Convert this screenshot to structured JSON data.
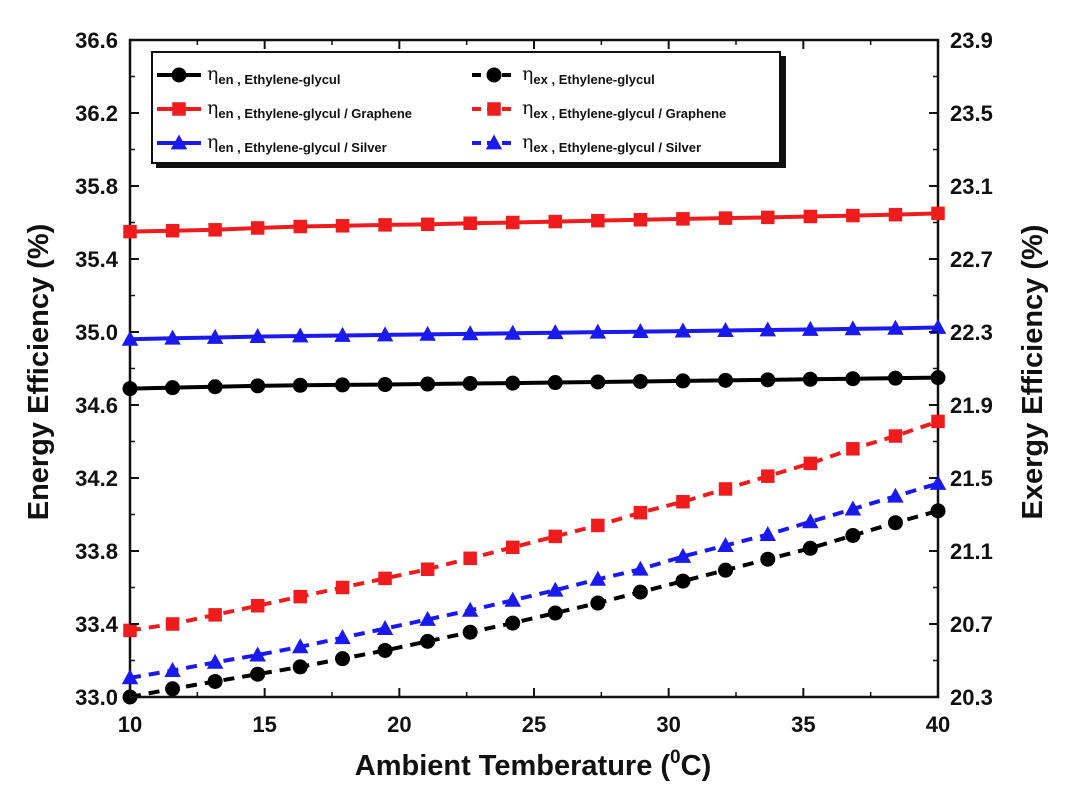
{
  "chart_data": {
    "type": "line",
    "xlabel": "Ambient Temberature (",
    "xlabel_sup": "0",
    "xlabel_unit": "C)",
    "ylabel": "Energy Efficiency (%)",
    "y2label": "Exergy Efficiency (%)",
    "xlim": [
      10,
      40
    ],
    "ylim": [
      33.0,
      36.6
    ],
    "y2lim": [
      20.3,
      23.9
    ],
    "x_ticks": [
      "10",
      "15",
      "20",
      "25",
      "30",
      "35",
      "40"
    ],
    "y_ticks": [
      "33.0",
      "33.4",
      "33.8",
      "34.2",
      "34.6",
      "35.0",
      "35.4",
      "35.8",
      "36.2",
      "36.6"
    ],
    "y2_ticks": [
      "20.3",
      "20.7",
      "21.1",
      "21.5",
      "21.9",
      "22.3",
      "22.7",
      "23.1",
      "23.5",
      "23.9"
    ],
    "x": [
      10,
      11.58,
      13.16,
      14.74,
      16.32,
      17.89,
      19.47,
      21.05,
      22.63,
      24.21,
      25.79,
      27.37,
      28.95,
      30.53,
      32.11,
      33.68,
      35.26,
      36.84,
      38.42,
      40
    ],
    "series": [
      {
        "name": "energy-ethylene-glycul",
        "axis": "left",
        "color": "#000000",
        "dash": false,
        "marker": "circle",
        "label_symbol": "η",
        "label_sub": "en",
        "label_text": ", Ethylene-glycul",
        "values": [
          34.69,
          34.695,
          34.7,
          34.705,
          34.708,
          34.71,
          34.712,
          34.715,
          34.718,
          34.72,
          34.723,
          34.726,
          34.729,
          34.732,
          34.735,
          34.738,
          34.741,
          34.744,
          34.747,
          34.75
        ]
      },
      {
        "name": "energy-ethylene-glycul-graphene",
        "axis": "left",
        "color": "#ee1c1c",
        "dash": false,
        "marker": "square",
        "label_symbol": "η",
        "label_sub": "en",
        "label_text": ", Ethylene-glycul / Graphene",
        "values": [
          35.55,
          35.555,
          35.56,
          35.57,
          35.578,
          35.582,
          35.587,
          35.59,
          35.596,
          35.6,
          35.605,
          35.61,
          35.615,
          35.62,
          35.624,
          35.628,
          35.633,
          35.638,
          35.643,
          35.65
        ]
      },
      {
        "name": "energy-ethylene-glycul-silver",
        "axis": "left",
        "color": "#1a1aee",
        "dash": false,
        "marker": "triangle",
        "label_symbol": "η",
        "label_sub": "en",
        "label_text": ", Ethylene-glycul / Silver",
        "values": [
          34.96,
          34.966,
          34.97,
          34.975,
          34.978,
          34.981,
          34.984,
          34.987,
          34.99,
          34.993,
          34.996,
          34.999,
          35.002,
          35.005,
          35.008,
          35.011,
          35.014,
          35.017,
          35.02,
          35.025
        ]
      },
      {
        "name": "exergy-ethylene-glycul",
        "axis": "right",
        "color": "#000000",
        "dash": true,
        "marker": "circle",
        "label_symbol": "η",
        "label_sub": "ex",
        "label_text": ", Ethylene-glycul",
        "values": [
          20.3,
          20.345,
          20.385,
          20.425,
          20.465,
          20.51,
          20.555,
          20.605,
          20.655,
          20.705,
          20.76,
          20.815,
          20.875,
          20.935,
          20.995,
          21.055,
          21.115,
          21.185,
          21.255,
          21.32
        ]
      },
      {
        "name": "exergy-ethylene-glycul-graphene",
        "axis": "right",
        "color": "#ee1c1c",
        "dash": true,
        "marker": "square",
        "label_symbol": "η",
        "label_sub": "ex",
        "label_text": ", Ethylene-glycul / Graphene",
        "values": [
          20.665,
          20.7,
          20.75,
          20.8,
          20.85,
          20.9,
          20.95,
          21.0,
          21.06,
          21.12,
          21.18,
          21.24,
          21.31,
          21.37,
          21.44,
          21.51,
          21.58,
          21.66,
          21.73,
          21.81
        ]
      },
      {
        "name": "exergy-ethylene-glycul-silver",
        "axis": "right",
        "color": "#1a1aee",
        "dash": true,
        "marker": "triangle",
        "label_symbol": "η",
        "label_sub": "ex",
        "label_text": ", Ethylene-glycul / Silver",
        "values": [
          20.405,
          20.445,
          20.49,
          20.53,
          20.575,
          20.625,
          20.675,
          20.725,
          20.775,
          20.83,
          20.885,
          20.945,
          21.0,
          21.07,
          21.13,
          21.19,
          21.26,
          21.33,
          21.4,
          21.47
        ]
      }
    ],
    "legend_position": "top-left"
  }
}
